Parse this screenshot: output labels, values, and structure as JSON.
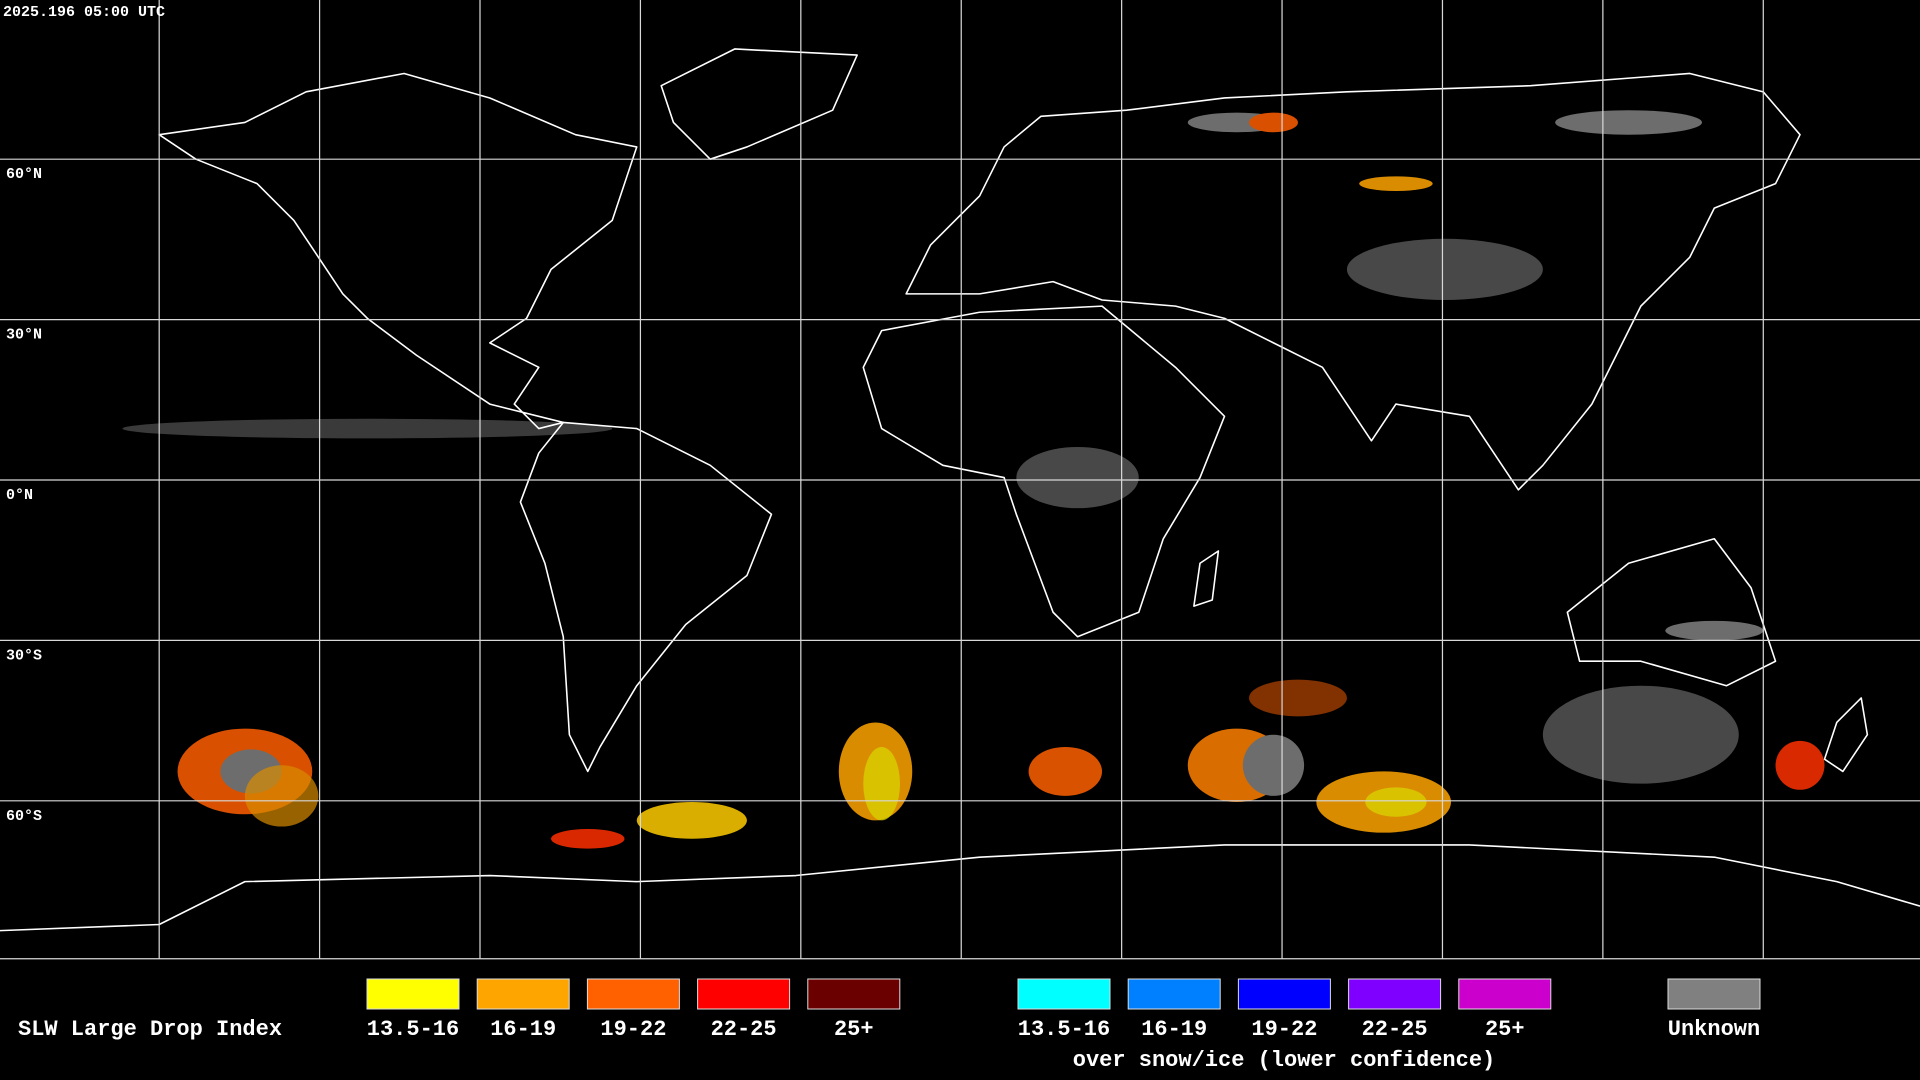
{
  "header": {
    "timestamp": "2025.196 05:00 UTC"
  },
  "map": {
    "latitude_labels": [
      "60°N",
      "30°N",
      "0°N",
      "30°S",
      "60°S"
    ]
  },
  "legend": {
    "title": "SLW Large Drop Index",
    "groups": [
      {
        "items": [
          {
            "label": "13.5-16",
            "color": "#ffff00"
          },
          {
            "label": "16-19",
            "color": "#ffa500"
          },
          {
            "label": "19-22",
            "color": "#ff6000"
          },
          {
            "label": "22-25",
            "color": "#ff0000"
          },
          {
            "label": "25+",
            "color": "#6b0000"
          }
        ]
      },
      {
        "caption": "over snow/ice (lower confidence)",
        "items": [
          {
            "label": "13.5-16",
            "color": "#00ffff"
          },
          {
            "label": "16-19",
            "color": "#0080ff"
          },
          {
            "label": "19-22",
            "color": "#0000ff"
          },
          {
            "label": "22-25",
            "color": "#8000ff"
          },
          {
            "label": "25+",
            "color": "#cc00cc"
          }
        ]
      },
      {
        "items": [
          {
            "label": "Unknown",
            "color": "#808080"
          }
        ]
      }
    ]
  }
}
